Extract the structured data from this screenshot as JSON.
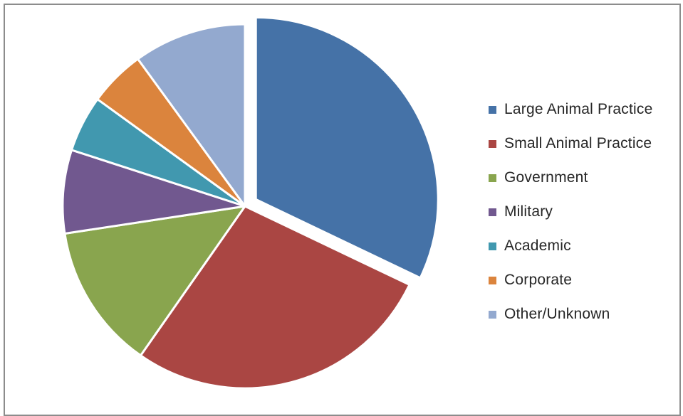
{
  "chart_data": {
    "type": "pie",
    "title": "",
    "categories": [
      "Large Animal Practice",
      "Small Animal Practice",
      "Government",
      "Military",
      "Academic",
      "Corporate",
      "Other/Unknown"
    ],
    "values": [
      32.1,
      27.6,
      12.9,
      7.4,
      5.0,
      5.0,
      10.0
    ],
    "colors": [
      "#4572a7",
      "#aa4643",
      "#89a54e",
      "#71588f",
      "#4198af",
      "#db843d",
      "#93a9cf"
    ],
    "exploded": true,
    "legend_position": "right"
  }
}
